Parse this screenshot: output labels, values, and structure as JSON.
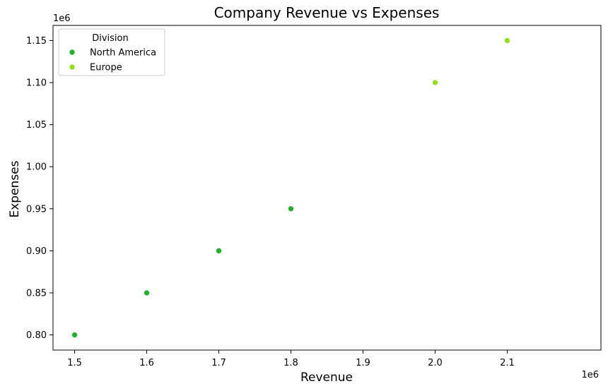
{
  "chart_data": {
    "type": "scatter",
    "title": "Company Revenue vs Expenses",
    "xlabel": "Revenue",
    "ylabel": "Expenses",
    "x_offset_label": "1e6",
    "y_offset_label": "1e6",
    "xlim": [
      1.47,
      2.23
    ],
    "ylim": [
      0.782,
      1.168
    ],
    "x_ticks": [
      1.5,
      1.6,
      1.7,
      1.8,
      1.9,
      2.0,
      2.1
    ],
    "x_tick_labels": [
      "1.5",
      "1.6",
      "1.7",
      "1.8",
      "1.9",
      "2.0",
      "2.1"
    ],
    "y_ticks": [
      0.8,
      0.85,
      0.9,
      0.95,
      1.0,
      1.05,
      1.1,
      1.15
    ],
    "y_tick_labels": [
      "0.80",
      "0.85",
      "0.90",
      "0.95",
      "1.00",
      "1.05",
      "1.10",
      "1.15"
    ],
    "grid": false,
    "legend": {
      "title": "Division",
      "placement": "top-left"
    },
    "series": [
      {
        "name": "North America",
        "color": "#21b02b",
        "points": [
          {
            "x": 1.5,
            "y": 0.8
          },
          {
            "x": 1.6,
            "y": 0.85
          },
          {
            "x": 1.7,
            "y": 0.9
          },
          {
            "x": 1.8,
            "y": 0.95
          }
        ]
      },
      {
        "name": "Europe",
        "color": "#93e01a",
        "points": [
          {
            "x": 2.0,
            "y": 1.1
          },
          {
            "x": 2.1,
            "y": 1.15
          }
        ]
      }
    ]
  }
}
